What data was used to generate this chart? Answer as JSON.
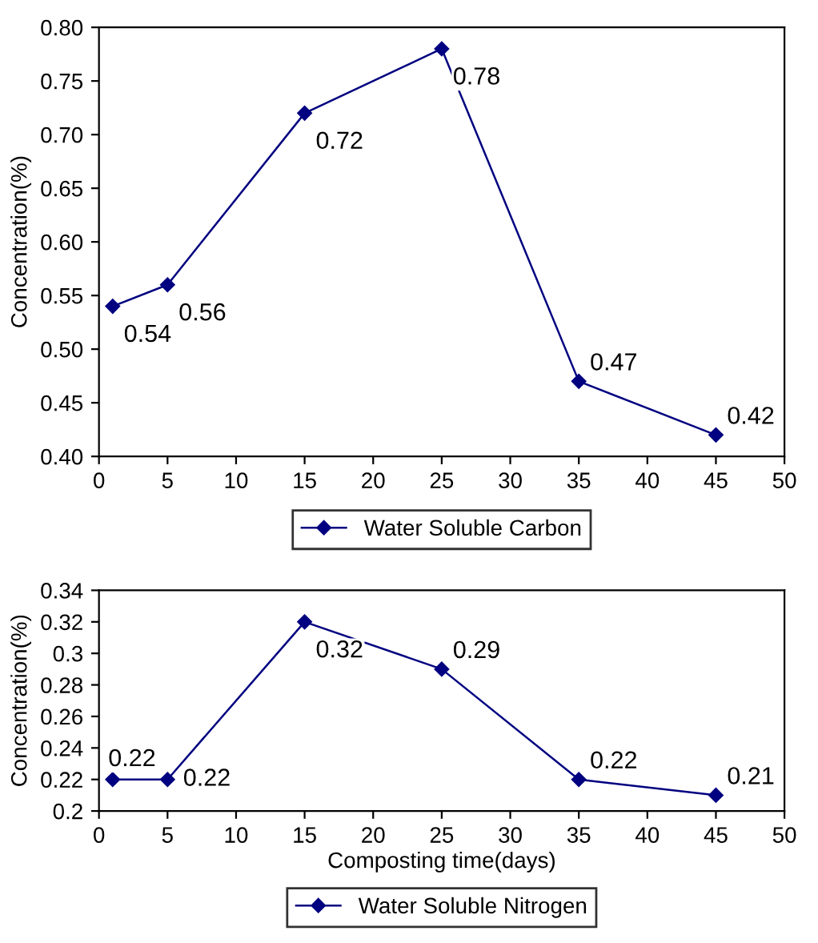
{
  "chart_data": [
    {
      "type": "line",
      "x": [
        1,
        5,
        15,
        25,
        35,
        45
      ],
      "ylabel": "Concentration(%)",
      "series": [
        {
          "name": "Water Soluble Carbon",
          "color": "#000080",
          "values": [
            0.54,
            0.56,
            0.72,
            0.78,
            0.47,
            0.42
          ]
        }
      ],
      "xlim": [
        0,
        50
      ],
      "xticks": [
        0,
        5,
        10,
        15,
        20,
        25,
        30,
        35,
        40,
        45,
        50
      ],
      "ylim": [
        0.4,
        0.8
      ],
      "yticks": [
        {
          "value": 0.4,
          "label": "0.40"
        },
        {
          "value": 0.45,
          "label": "0.45"
        },
        {
          "value": 0.5,
          "label": "0.50"
        },
        {
          "value": 0.55,
          "label": "0.55"
        },
        {
          "value": 0.6,
          "label": "0.60"
        },
        {
          "value": 0.65,
          "label": "0.65"
        },
        {
          "value": 0.7,
          "label": "0.70"
        },
        {
          "value": 0.75,
          "label": "0.75"
        },
        {
          "value": 0.8,
          "label": "0.80"
        }
      ],
      "marker": "diamond",
      "line_style": "solid",
      "data_labels": true,
      "legend": "bottom",
      "grid": false
    },
    {
      "type": "line",
      "x": [
        1,
        5,
        15,
        25,
        35,
        45
      ],
      "ylabel": "Concentration(%)",
      "xlabel": "Composting time(days)",
      "series": [
        {
          "name": "Water Soluble Nitrogen",
          "color": "#000080",
          "values": [
            0.22,
            0.22,
            0.32,
            0.29,
            0.22,
            0.21
          ]
        }
      ],
      "xlim": [
        0,
        50
      ],
      "xticks": [
        0,
        5,
        10,
        15,
        20,
        25,
        30,
        35,
        40,
        45,
        50
      ],
      "ylim": [
        0.2,
        0.34
      ],
      "yticks": [
        0.2,
        0.22,
        0.24,
        0.26,
        0.28,
        0.3,
        0.32,
        0.34
      ],
      "marker": "diamond",
      "line_style": "solid",
      "data_labels": true,
      "legend": "bottom",
      "grid": false
    }
  ]
}
